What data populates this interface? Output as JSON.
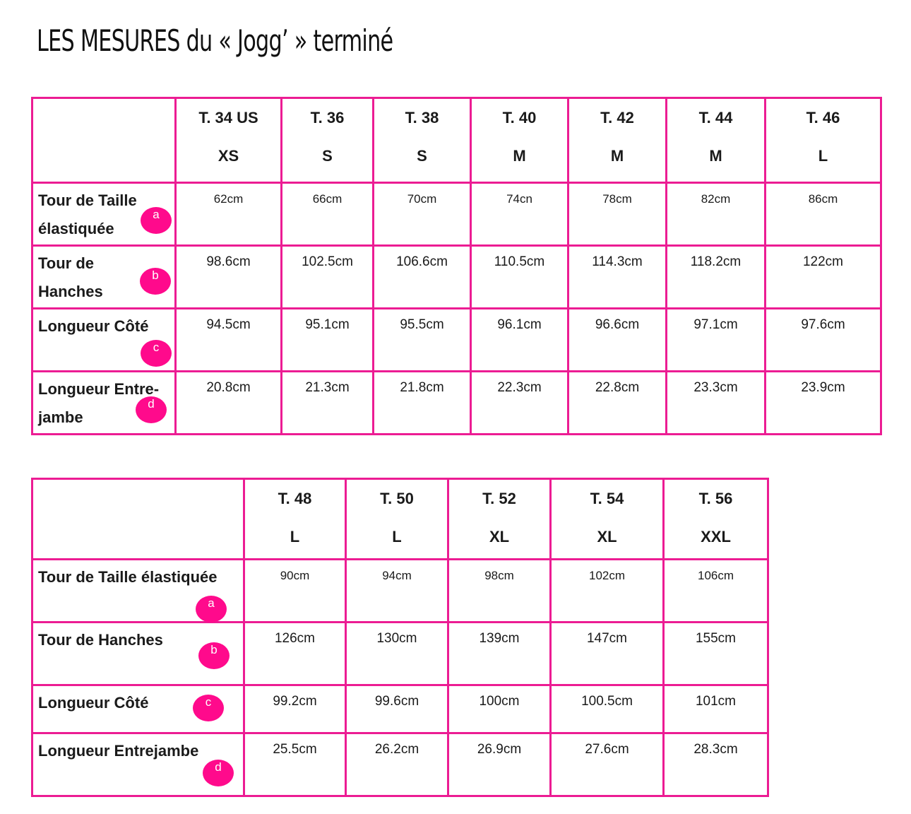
{
  "title": "LES MESURES du « Jogg’ » terminé",
  "colors": {
    "border": "#ec1c93",
    "marker": "#ff0a8c"
  },
  "table1": {
    "sizes": [
      {
        "size": "T. 34 US",
        "letter": "XS"
      },
      {
        "size": "T. 36",
        "letter": "S"
      },
      {
        "size": "T. 38",
        "letter": "S"
      },
      {
        "size": "T. 40",
        "letter": "M"
      },
      {
        "size": "T. 42",
        "letter": "M"
      },
      {
        "size": "T. 44",
        "letter": "M"
      },
      {
        "size": "T. 46",
        "letter": "L"
      }
    ],
    "rows": [
      {
        "label_line1": "Tour de Taille",
        "label_line2": "élastiquée",
        "marker": "a",
        "values": [
          "62cm",
          "66cm",
          "70cm",
          "74cn",
          "78cm",
          "82cm",
          "86cm"
        ]
      },
      {
        "label_line1": "Tour de",
        "label_line2": "Hanches",
        "marker": "b",
        "values": [
          "98.6cm",
          "102.5cm",
          "106.6cm",
          "110.5cm",
          "114.3cm",
          "118.2cm",
          "122cm"
        ]
      },
      {
        "label_line1": "Longueur Côté",
        "label_line2": "",
        "marker": "c",
        "values": [
          "94.5cm",
          "95.1cm",
          "95.5cm",
          "96.1cm",
          "96.6cm",
          "97.1cm",
          "97.6cm"
        ]
      },
      {
        "label_line1": "Longueur Entre-",
        "label_line2": "jambe",
        "marker": "d",
        "values": [
          "20.8cm",
          "21.3cm",
          "21.8cm",
          "22.3cm",
          "22.8cm",
          "23.3cm",
          "23.9cm"
        ]
      }
    ]
  },
  "table2": {
    "sizes": [
      {
        "size": "T. 48",
        "letter": "L"
      },
      {
        "size": "T. 50",
        "letter": "L"
      },
      {
        "size": "T. 52",
        "letter": "XL"
      },
      {
        "size": "T. 54",
        "letter": "XL"
      },
      {
        "size": "T. 56",
        "letter": "XXL"
      }
    ],
    "rows": [
      {
        "label": "Tour de Taille élastiquée",
        "marker": "a",
        "values": [
          "90cm",
          "94cm",
          "98cm",
          "102cm",
          "106cm"
        ]
      },
      {
        "label": "Tour de Hanches",
        "marker": "b",
        "values": [
          "126cm",
          "130cm",
          "139cm",
          "147cm",
          "155cm"
        ]
      },
      {
        "label": "Longueur Côté",
        "marker": "c",
        "values": [
          "99.2cm",
          "99.6cm",
          "100cm",
          "100.5cm",
          "101cm"
        ]
      },
      {
        "label": "Longueur Entrejambe",
        "marker": "d",
        "values": [
          "25.5cm",
          "26.2cm",
          "26.9cm",
          "27.6cm",
          "28.3cm"
        ]
      }
    ]
  }
}
